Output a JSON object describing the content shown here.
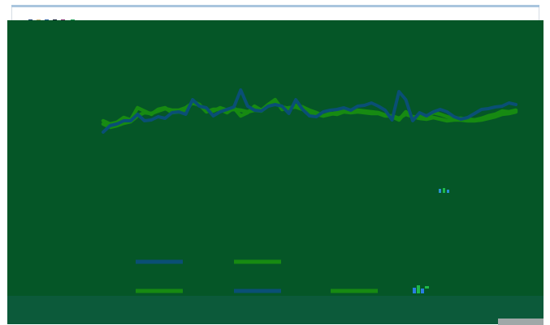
{
  "colors": {
    "background": "#055627",
    "series_blue": "#0a4f75",
    "series_green": "#178a12",
    "frame_rule": "#a9c5de",
    "footer_band": "#0c5a3a",
    "corner_tab": "#9fa8a8"
  },
  "chart_data": {
    "type": "line",
    "title": "",
    "xlabel": "",
    "ylabel": "",
    "grid": false,
    "legend": "bottom",
    "xlim": [
      0,
      60
    ],
    "ylim": [
      0,
      100
    ],
    "x": [
      0,
      1,
      2,
      3,
      4,
      5,
      6,
      7,
      8,
      9,
      10,
      11,
      12,
      13,
      14,
      15,
      16,
      17,
      18,
      19,
      20,
      21,
      22,
      23,
      24,
      25,
      26,
      27,
      28,
      29,
      30,
      31,
      32,
      33,
      34,
      35,
      36,
      37,
      38,
      39,
      40,
      41,
      42,
      43,
      44,
      45,
      46,
      47,
      48,
      49,
      50,
      51,
      52,
      53,
      54,
      55,
      56,
      57,
      58,
      59,
      60
    ],
    "series": [
      {
        "color": "#0a4f75",
        "values": [
          30,
          38,
          40,
          44,
          44,
          52,
          44,
          45,
          49,
          47,
          54,
          55,
          52,
          70,
          62,
          60,
          50,
          55,
          58,
          61,
          82,
          62,
          57,
          56,
          62,
          64,
          62,
          53,
          70,
          58,
          50,
          49,
          55,
          57,
          58,
          60,
          57,
          62,
          63,
          66,
          62,
          57,
          45,
          80,
          70,
          44,
          54,
          50,
          55,
          58,
          55,
          49,
          46,
          48,
          53,
          58,
          59,
          61,
          62,
          66,
          64
        ]
      },
      {
        "color": "#178a12",
        "values": [
          44,
          40,
          42,
          48,
          45,
          60,
          56,
          52,
          58,
          60,
          54,
          55,
          55,
          68,
          64,
          55,
          58,
          58,
          54,
          60,
          50,
          54,
          62,
          57,
          64,
          70,
          58,
          60,
          61,
          58,
          54,
          52,
          50,
          52,
          54,
          56,
          55,
          57,
          56,
          55,
          54,
          51,
          49,
          45,
          55,
          48,
          50,
          48,
          54,
          52,
          49,
          47,
          47,
          46,
          45,
          47,
          50,
          52,
          56,
          55,
          57
        ]
      },
      {
        "color": "#178a12",
        "values": [
          40,
          36,
          38,
          41,
          43,
          50,
          54,
          53,
          56,
          59,
          57,
          57,
          60,
          66,
          63,
          57,
          56,
          60,
          57,
          58,
          57,
          55,
          57,
          56,
          63,
          66,
          61,
          59,
          63,
          61,
          57,
          54,
          50,
          53,
          52,
          55,
          54,
          55,
          54,
          53,
          53,
          50,
          50,
          47,
          52,
          49,
          47,
          46,
          48,
          46,
          44,
          45,
          45,
          44,
          44,
          45,
          47,
          49,
          52,
          53,
          55
        ]
      }
    ]
  }
}
